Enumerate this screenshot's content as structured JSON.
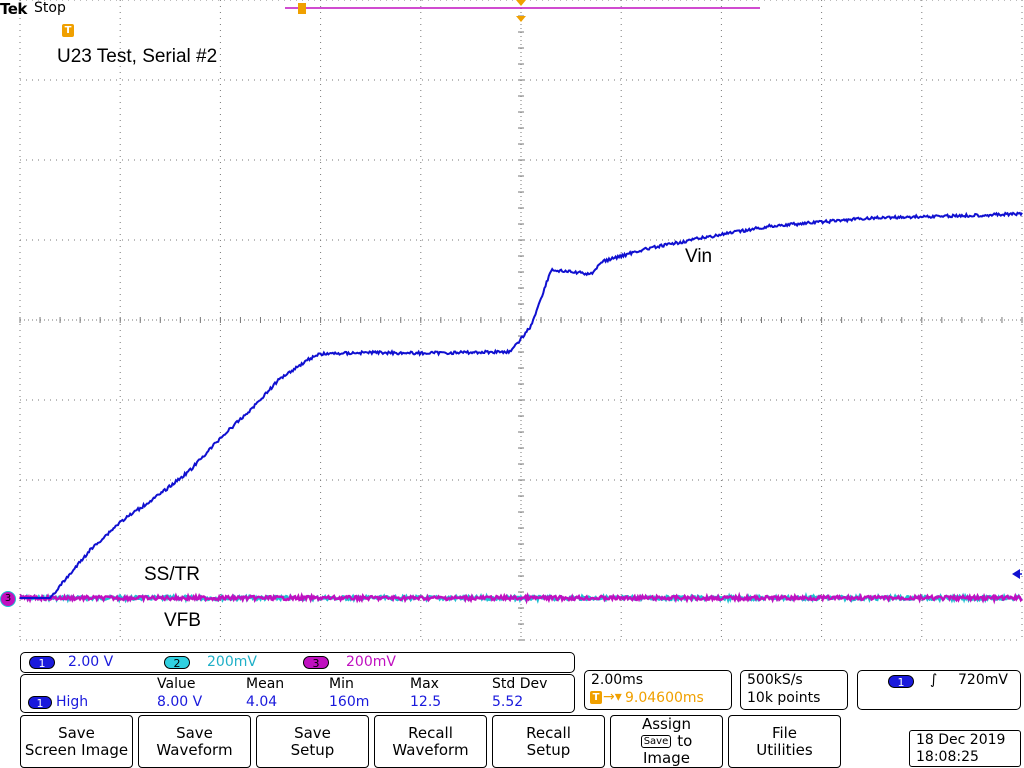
{
  "header": {
    "brand": "Tek",
    "status": "Stop"
  },
  "annotations": {
    "title": "U23 Test, Serial #2",
    "vin_label": "Vin",
    "sstr_label": "SS/TR",
    "vfb_label": "VFB"
  },
  "markers": {
    "trigger_marker": "T",
    "ground_marker": "3"
  },
  "colors": {
    "ch1": "#1010d0",
    "ch2": "#20c0d0",
    "ch3": "#c010c0",
    "trigger": "#f0a000",
    "value_text": "#1a1adc"
  },
  "channels": [
    {
      "number": "1",
      "scale": "2.00 V"
    },
    {
      "number": "2",
      "scale": "200mV"
    },
    {
      "number": "3",
      "scale": "200mV"
    }
  ],
  "measurement": {
    "source": "1",
    "name": "High",
    "headers": [
      "Value",
      "Mean",
      "Min",
      "Max",
      "Std Dev"
    ],
    "values": [
      "8.00 V",
      "4.04",
      "160m",
      "12.5",
      "5.52"
    ]
  },
  "timebase": {
    "scale": "2.00ms",
    "trigger_position": "9.04600ms",
    "sample_rate": "500kS/s",
    "record_length": "10k points"
  },
  "trigger": {
    "source": "1",
    "slope_icon": "rising-edge-icon",
    "level": "720mV"
  },
  "buttons": [
    {
      "line1": "Save",
      "line2": "Screen Image"
    },
    {
      "line1": "Save",
      "line2": "Waveform"
    },
    {
      "line1": "Save",
      "line2": "Setup"
    },
    {
      "line1": "Recall",
      "line2": "Waveform"
    },
    {
      "line1": "Recall",
      "line2": "Setup"
    },
    {
      "line1": "Assign",
      "line2": "Save",
      "line3": "to",
      "line4": "Image"
    },
    {
      "line1": "File",
      "line2": "Utilities"
    }
  ],
  "datetime": {
    "date": "18 Dec 2019",
    "time": "18:08:25"
  },
  "chart_data": {
    "type": "line",
    "x_divisions": 10,
    "y_divisions": 8,
    "series": [
      {
        "name": "Vin",
        "channel": "1",
        "points_div": [
          [
            0.3,
            0.0
          ],
          [
            0.5,
            0.3
          ],
          [
            0.7,
            0.6
          ],
          [
            1.0,
            0.95
          ],
          [
            1.4,
            1.3
          ],
          [
            1.7,
            1.6
          ],
          [
            2.0,
            2.0
          ],
          [
            2.3,
            2.35
          ],
          [
            2.6,
            2.75
          ],
          [
            2.9,
            3.0
          ],
          [
            3.0,
            3.05
          ],
          [
            3.5,
            3.07
          ],
          [
            4.0,
            3.06
          ],
          [
            4.5,
            3.07
          ],
          [
            4.9,
            3.08
          ],
          [
            5.1,
            3.4
          ],
          [
            5.3,
            4.1
          ],
          [
            5.7,
            4.05
          ],
          [
            5.8,
            4.2
          ],
          [
            6.2,
            4.35
          ],
          [
            6.8,
            4.5
          ],
          [
            7.5,
            4.65
          ],
          [
            8.5,
            4.75
          ],
          [
            10.0,
            4.8
          ]
        ]
      },
      {
        "name": "SS/TR",
        "channel": "2",
        "points_div": [
          [
            0,
            0.0
          ],
          [
            10,
            0.0
          ]
        ]
      },
      {
        "name": "VFB",
        "channel": "3",
        "points_div": [
          [
            0,
            0.0
          ],
          [
            10,
            0.0
          ]
        ]
      }
    ]
  }
}
